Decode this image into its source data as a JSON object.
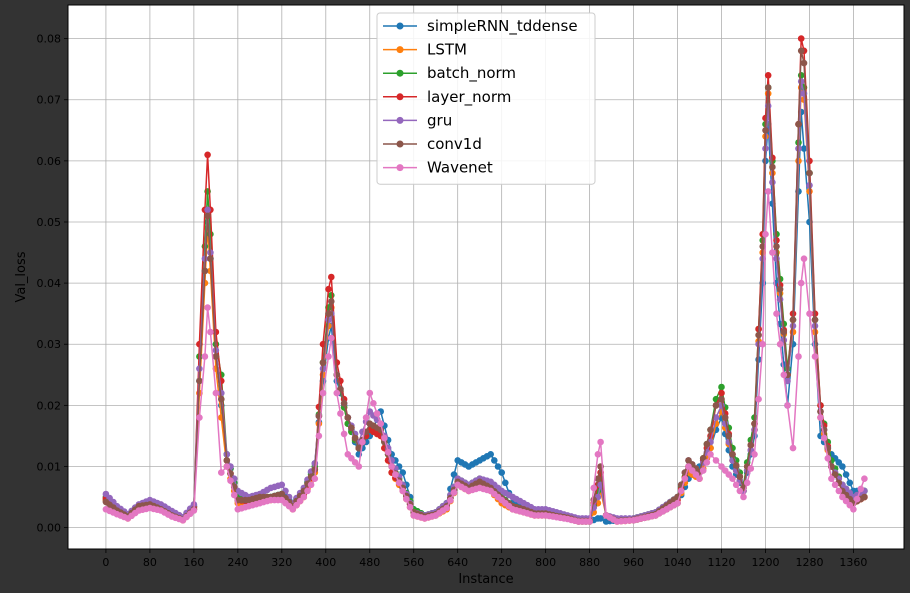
{
  "chart_data": {
    "type": "line",
    "title": "",
    "xlabel": "Instance",
    "ylabel": "Val_loss",
    "xlim": [
      -69,
      1452
    ],
    "ylim": [
      -0.0035,
      0.0855
    ],
    "xticks": [
      0,
      80,
      160,
      240,
      320,
      400,
      480,
      560,
      640,
      720,
      800,
      880,
      960,
      1040,
      1120,
      1200,
      1280,
      1360
    ],
    "xtick_labels": [
      "0",
      "80",
      "160",
      "240",
      "320",
      "400",
      "480",
      "560",
      "640",
      "720",
      "800",
      "880",
      "960",
      "1040",
      "1120",
      "1200",
      "1280",
      "1360"
    ],
    "yticks": [
      0.0,
      0.01,
      0.02,
      0.03,
      0.04,
      0.05,
      0.06,
      0.07,
      0.08
    ],
    "ytick_labels": [
      "0.00",
      "0.01",
      "0.02",
      "0.03",
      "0.04",
      "0.05",
      "0.06",
      "0.07",
      "0.08"
    ],
    "grid": true,
    "legend_position": "top-center",
    "markers": true,
    "x": [
      0,
      20,
      40,
      60,
      80,
      100,
      120,
      140,
      160,
      170,
      180,
      185,
      190,
      200,
      210,
      220,
      240,
      260,
      280,
      300,
      320,
      340,
      360,
      380,
      395,
      405,
      410,
      420,
      440,
      460,
      480,
      500,
      520,
      540,
      560,
      580,
      600,
      620,
      640,
      660,
      680,
      700,
      720,
      740,
      760,
      780,
      800,
      820,
      840,
      860,
      880,
      895,
      900,
      910,
      930,
      960,
      1000,
      1040,
      1060,
      1080,
      1100,
      1110,
      1120,
      1140,
      1160,
      1180,
      1195,
      1200,
      1205,
      1220,
      1240,
      1250,
      1260,
      1265,
      1270,
      1280,
      1290,
      1300,
      1320,
      1340,
      1360,
      1380
    ],
    "series": [
      {
        "name": "simpleRNN_tddense",
        "color": "#1f77b4",
        "values": [
          0.0045,
          0.003,
          0.002,
          0.0035,
          0.0038,
          0.0032,
          0.0022,
          0.0015,
          0.0035,
          0.024,
          0.042,
          0.05,
          0.044,
          0.028,
          0.02,
          0.012,
          0.005,
          0.0045,
          0.0048,
          0.005,
          0.0055,
          0.004,
          0.006,
          0.0105,
          0.024,
          0.031,
          0.033,
          0.024,
          0.018,
          0.012,
          0.015,
          0.019,
          0.012,
          0.009,
          0.003,
          0.002,
          0.002,
          0.004,
          0.011,
          0.01,
          0.011,
          0.012,
          0.009,
          0.004,
          0.003,
          0.0025,
          0.0025,
          0.002,
          0.0015,
          0.001,
          0.001,
          0.0015,
          0.0015,
          0.001,
          0.0012,
          0.0012,
          0.002,
          0.004,
          0.008,
          0.01,
          0.013,
          0.016,
          0.018,
          0.01,
          0.006,
          0.015,
          0.04,
          0.06,
          0.066,
          0.04,
          0.02,
          0.03,
          0.055,
          0.068,
          0.062,
          0.05,
          0.03,
          0.015,
          0.012,
          0.01,
          0.006,
          0.006
        ]
      },
      {
        "name": "LSTM",
        "color": "#ff7f0e",
        "values": [
          0.0045,
          0.0025,
          0.0015,
          0.003,
          0.0035,
          0.003,
          0.002,
          0.0012,
          0.003,
          0.022,
          0.04,
          0.049,
          0.042,
          0.026,
          0.018,
          0.01,
          0.004,
          0.004,
          0.0045,
          0.0045,
          0.005,
          0.003,
          0.005,
          0.009,
          0.025,
          0.033,
          0.036,
          0.025,
          0.017,
          0.013,
          0.016,
          0.015,
          0.009,
          0.006,
          0.002,
          0.0015,
          0.002,
          0.003,
          0.007,
          0.006,
          0.007,
          0.006,
          0.004,
          0.003,
          0.0025,
          0.002,
          0.002,
          0.0018,
          0.0015,
          0.001,
          0.001,
          0.004,
          0.006,
          0.002,
          0.001,
          0.0012,
          0.002,
          0.004,
          0.009,
          0.008,
          0.013,
          0.017,
          0.019,
          0.011,
          0.006,
          0.016,
          0.045,
          0.064,
          0.071,
          0.045,
          0.025,
          0.032,
          0.06,
          0.072,
          0.07,
          0.055,
          0.032,
          0.018,
          0.01,
          0.006,
          0.004,
          0.005
        ]
      },
      {
        "name": "batch_norm",
        "color": "#2ca02c",
        "values": [
          0.005,
          0.003,
          0.002,
          0.0035,
          0.004,
          0.0035,
          0.0025,
          0.0015,
          0.0035,
          0.028,
          0.046,
          0.055,
          0.048,
          0.03,
          0.025,
          0.012,
          0.005,
          0.0045,
          0.005,
          0.005,
          0.0055,
          0.0035,
          0.006,
          0.01,
          0.027,
          0.036,
          0.038,
          0.025,
          0.017,
          0.013,
          0.016,
          0.016,
          0.01,
          0.007,
          0.003,
          0.002,
          0.0025,
          0.004,
          0.008,
          0.007,
          0.008,
          0.007,
          0.005,
          0.0035,
          0.003,
          0.0025,
          0.0025,
          0.002,
          0.0018,
          0.0012,
          0.0012,
          0.006,
          0.008,
          0.002,
          0.0012,
          0.0015,
          0.0025,
          0.005,
          0.01,
          0.009,
          0.016,
          0.021,
          0.023,
          0.013,
          0.007,
          0.018,
          0.047,
          0.066,
          0.072,
          0.048,
          0.026,
          0.034,
          0.063,
          0.074,
          0.072,
          0.058,
          0.034,
          0.02,
          0.011,
          0.007,
          0.005,
          0.006
        ]
      },
      {
        "name": "layer_norm",
        "color": "#d62728",
        "values": [
          0.0048,
          0.003,
          0.0018,
          0.0033,
          0.0038,
          0.0033,
          0.0022,
          0.0014,
          0.0033,
          0.03,
          0.052,
          0.061,
          0.052,
          0.032,
          0.024,
          0.011,
          0.0045,
          0.0043,
          0.0048,
          0.0048,
          0.0052,
          0.0032,
          0.0055,
          0.0095,
          0.03,
          0.039,
          0.041,
          0.027,
          0.018,
          0.013,
          0.016,
          0.015,
          0.009,
          0.0065,
          0.0025,
          0.0018,
          0.0022,
          0.0035,
          0.0075,
          0.0065,
          0.0075,
          0.0065,
          0.0045,
          0.0032,
          0.0028,
          0.0022,
          0.0022,
          0.0019,
          0.0016,
          0.0011,
          0.0011,
          0.007,
          0.009,
          0.002,
          0.0011,
          0.0013,
          0.0022,
          0.0045,
          0.01,
          0.009,
          0.015,
          0.02,
          0.022,
          0.012,
          0.0065,
          0.017,
          0.048,
          0.067,
          0.074,
          0.047,
          0.025,
          0.035,
          0.066,
          0.08,
          0.078,
          0.06,
          0.035,
          0.02,
          0.01,
          0.006,
          0.004,
          0.005
        ]
      },
      {
        "name": "gru",
        "color": "#9467bd",
        "values": [
          0.0055,
          0.0035,
          0.0022,
          0.0038,
          0.0045,
          0.0038,
          0.0027,
          0.0017,
          0.0038,
          0.026,
          0.044,
          0.052,
          0.045,
          0.029,
          0.022,
          0.012,
          0.006,
          0.005,
          0.0055,
          0.0065,
          0.007,
          0.004,
          0.0065,
          0.0105,
          0.026,
          0.034,
          0.035,
          0.025,
          0.018,
          0.014,
          0.019,
          0.017,
          0.011,
          0.007,
          0.0025,
          0.002,
          0.0025,
          0.004,
          0.008,
          0.007,
          0.008,
          0.0075,
          0.006,
          0.005,
          0.004,
          0.003,
          0.003,
          0.0025,
          0.002,
          0.0015,
          0.0015,
          0.005,
          0.007,
          0.002,
          0.0015,
          0.0015,
          0.0025,
          0.005,
          0.011,
          0.009,
          0.014,
          0.018,
          0.02,
          0.011,
          0.006,
          0.016,
          0.044,
          0.062,
          0.069,
          0.044,
          0.024,
          0.033,
          0.062,
          0.073,
          0.071,
          0.056,
          0.033,
          0.019,
          0.01,
          0.007,
          0.005,
          0.006
        ]
      },
      {
        "name": "conv1d",
        "color": "#8c564b",
        "values": [
          0.0042,
          0.0028,
          0.0018,
          0.0035,
          0.0038,
          0.003,
          0.002,
          0.0013,
          0.003,
          0.024,
          0.042,
          0.051,
          0.044,
          0.028,
          0.021,
          0.011,
          0.0045,
          0.0045,
          0.005,
          0.005,
          0.0055,
          0.0035,
          0.006,
          0.0095,
          0.027,
          0.035,
          0.037,
          0.025,
          0.018,
          0.013,
          0.017,
          0.016,
          0.01,
          0.0065,
          0.0025,
          0.0018,
          0.0022,
          0.0035,
          0.0075,
          0.0065,
          0.0075,
          0.0065,
          0.0048,
          0.0035,
          0.003,
          0.0023,
          0.0023,
          0.0019,
          0.0016,
          0.0011,
          0.0011,
          0.008,
          0.01,
          0.002,
          0.0011,
          0.0013,
          0.0022,
          0.005,
          0.011,
          0.009,
          0.016,
          0.02,
          0.021,
          0.012,
          0.0065,
          0.017,
          0.046,
          0.065,
          0.072,
          0.046,
          0.025,
          0.034,
          0.066,
          0.078,
          0.076,
          0.058,
          0.034,
          0.019,
          0.01,
          0.006,
          0.004,
          0.005
        ]
      },
      {
        "name": "Wavenet",
        "color": "#e377c2",
        "values": [
          0.003,
          0.0022,
          0.0015,
          0.0028,
          0.0032,
          0.0028,
          0.0018,
          0.0012,
          0.0028,
          0.018,
          0.028,
          0.036,
          0.032,
          0.022,
          0.009,
          0.01,
          0.003,
          0.0035,
          0.004,
          0.0045,
          0.0045,
          0.003,
          0.005,
          0.008,
          0.022,
          0.028,
          0.031,
          0.022,
          0.012,
          0.01,
          0.022,
          0.017,
          0.01,
          0.006,
          0.002,
          0.0015,
          0.002,
          0.0032,
          0.007,
          0.006,
          0.0065,
          0.006,
          0.0045,
          0.003,
          0.0025,
          0.002,
          0.002,
          0.0017,
          0.0014,
          0.001,
          0.001,
          0.012,
          0.014,
          0.002,
          0.001,
          0.0012,
          0.002,
          0.004,
          0.01,
          0.008,
          0.012,
          0.011,
          0.01,
          0.008,
          0.005,
          0.012,
          0.03,
          0.048,
          0.055,
          0.035,
          0.02,
          0.013,
          0.028,
          0.04,
          0.044,
          0.035,
          0.028,
          0.018,
          0.008,
          0.005,
          0.003,
          0.008
        ]
      }
    ]
  }
}
